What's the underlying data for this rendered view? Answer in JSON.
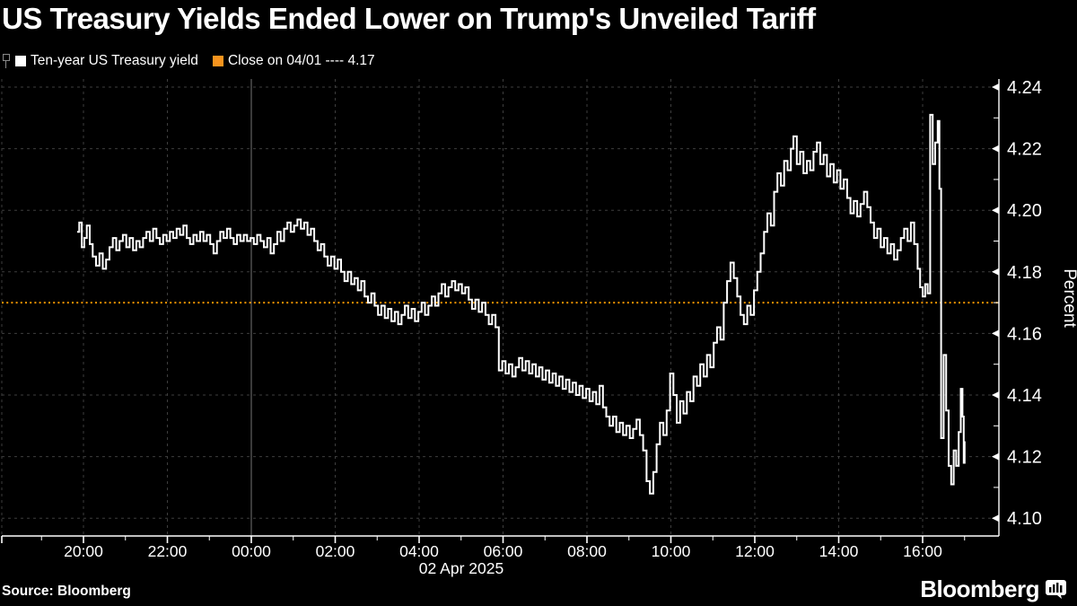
{
  "title": {
    "text": "US Treasury Yields Ended Lower on Trump's Unveiled Tariff"
  },
  "legend": {
    "series1": {
      "label": "Ten-year US Treasury yield",
      "swatch_color": "#ffffff"
    },
    "series2": {
      "label": "Close on 04/01 ---- 4.17",
      "swatch_color": "#f7941e"
    }
  },
  "footer": {
    "source": "Source: Bloomberg",
    "brand": "Bloomberg"
  },
  "colors": {
    "background": "#000000",
    "line": "#ffffff",
    "close_line": "#f79500",
    "grid": "#3e3e3e",
    "day_separator": "#757575",
    "axis": "#ffffff",
    "pin_icon": "#8a8a8a"
  },
  "chart_data": {
    "type": "line",
    "title": "US Treasury Yields Ended Lower on Trump's Unveiled Tariff",
    "ylabel": "Percent",
    "date_label": "02 Apr 2025",
    "y_axis": {
      "min": 4.1,
      "max": 4.24,
      "tick_step": 0.02,
      "tick_labels": [
        "4.10",
        "4.12",
        "4.14",
        "4.16",
        "4.18",
        "4.20",
        "4.22",
        "4.24"
      ]
    },
    "x_axis": {
      "tick_labels": [
        "20:00",
        "22:00",
        "00:00",
        "02:00",
        "04:00",
        "06:00",
        "08:00",
        "10:00",
        "12:00",
        "14:00",
        "16:00"
      ],
      "tick_hours": [
        1,
        3,
        5,
        7,
        9,
        11,
        13,
        15,
        17,
        19,
        21
      ],
      "day_separator_hour": 5,
      "grid": true
    },
    "close_line": {
      "label": "Close on 04/01",
      "value": 4.17,
      "style": "dashed",
      "color": "#f79500"
    },
    "series": [
      {
        "name": "Ten-year US Treasury yield",
        "color": "#ffffff",
        "interpolation": "step-after",
        "points": [
          [
            0.85,
            4.193
          ],
          [
            0.9,
            4.196
          ],
          [
            0.96,
            4.188
          ],
          [
            1.02,
            4.191
          ],
          [
            1.08,
            4.195
          ],
          [
            1.15,
            4.189
          ],
          [
            1.22,
            4.185
          ],
          [
            1.3,
            4.182
          ],
          [
            1.38,
            4.186
          ],
          [
            1.46,
            4.181
          ],
          [
            1.54,
            4.184
          ],
          [
            1.62,
            4.188
          ],
          [
            1.7,
            4.191
          ],
          [
            1.78,
            4.187
          ],
          [
            1.86,
            4.19
          ],
          [
            1.94,
            4.192
          ],
          [
            2.02,
            4.188
          ],
          [
            2.1,
            4.191
          ],
          [
            2.18,
            4.187
          ],
          [
            2.26,
            4.19
          ],
          [
            2.34,
            4.188
          ],
          [
            2.42,
            4.191
          ],
          [
            2.5,
            4.193
          ],
          [
            2.58,
            4.19
          ],
          [
            2.66,
            4.194
          ],
          [
            2.74,
            4.191
          ],
          [
            2.82,
            4.189
          ],
          [
            2.9,
            4.192
          ],
          [
            2.98,
            4.19
          ],
          [
            3.06,
            4.193
          ],
          [
            3.14,
            4.191
          ],
          [
            3.22,
            4.194
          ],
          [
            3.3,
            4.192
          ],
          [
            3.38,
            4.195
          ],
          [
            3.46,
            4.191
          ],
          [
            3.54,
            4.189
          ],
          [
            3.62,
            4.192
          ],
          [
            3.7,
            4.19
          ],
          [
            3.78,
            4.193
          ],
          [
            3.86,
            4.19
          ],
          [
            3.94,
            4.192
          ],
          [
            4.02,
            4.189
          ],
          [
            4.1,
            4.186
          ],
          [
            4.18,
            4.19
          ],
          [
            4.26,
            4.193
          ],
          [
            4.34,
            4.191
          ],
          [
            4.42,
            4.194
          ],
          [
            4.5,
            4.191
          ],
          [
            4.58,
            4.189
          ],
          [
            4.66,
            4.192
          ],
          [
            4.74,
            4.19
          ],
          [
            4.82,
            4.192
          ],
          [
            4.9,
            4.19
          ],
          [
            4.98,
            4.191
          ],
          [
            5.06,
            4.189
          ],
          [
            5.14,
            4.192
          ],
          [
            5.22,
            4.19
          ],
          [
            5.3,
            4.188
          ],
          [
            5.38,
            4.191
          ],
          [
            5.46,
            4.186
          ],
          [
            5.54,
            4.189
          ],
          [
            5.62,
            4.193
          ],
          [
            5.7,
            4.19
          ],
          [
            5.78,
            4.194
          ],
          [
            5.86,
            4.196
          ],
          [
            5.94,
            4.193
          ],
          [
            6.02,
            4.195
          ],
          [
            6.1,
            4.197
          ],
          [
            6.18,
            4.194
          ],
          [
            6.26,
            4.196
          ],
          [
            6.34,
            4.192
          ],
          [
            6.42,
            4.194
          ],
          [
            6.5,
            4.19
          ],
          [
            6.58,
            4.187
          ],
          [
            6.66,
            4.189
          ],
          [
            6.74,
            4.185
          ],
          [
            6.82,
            4.182
          ],
          [
            6.9,
            4.185
          ],
          [
            6.98,
            4.181
          ],
          [
            7.06,
            4.184
          ],
          [
            7.14,
            4.18
          ],
          [
            7.22,
            4.177
          ],
          [
            7.3,
            4.18
          ],
          [
            7.38,
            4.176
          ],
          [
            7.46,
            4.178
          ],
          [
            7.54,
            4.174
          ],
          [
            7.62,
            4.177
          ],
          [
            7.7,
            4.172
          ],
          [
            7.78,
            4.17
          ],
          [
            7.86,
            4.173
          ],
          [
            7.94,
            4.169
          ],
          [
            8.02,
            4.166
          ],
          [
            8.1,
            4.169
          ],
          [
            8.18,
            4.165
          ],
          [
            8.26,
            4.168
          ],
          [
            8.34,
            4.164
          ],
          [
            8.42,
            4.167
          ],
          [
            8.5,
            4.163
          ],
          [
            8.58,
            4.166
          ],
          [
            8.66,
            4.169
          ],
          [
            8.74,
            4.165
          ],
          [
            8.82,
            4.168
          ],
          [
            8.9,
            4.164
          ],
          [
            8.98,
            4.167
          ],
          [
            9.06,
            4.17
          ],
          [
            9.14,
            4.166
          ],
          [
            9.22,
            4.169
          ],
          [
            9.3,
            4.172
          ],
          [
            9.38,
            4.169
          ],
          [
            9.46,
            4.173
          ],
          [
            9.54,
            4.176
          ],
          [
            9.62,
            4.172
          ],
          [
            9.7,
            4.175
          ],
          [
            9.78,
            4.177
          ],
          [
            9.86,
            4.174
          ],
          [
            9.94,
            4.176
          ],
          [
            10.02,
            4.173
          ],
          [
            10.1,
            4.175
          ],
          [
            10.18,
            4.171
          ],
          [
            10.26,
            4.168
          ],
          [
            10.34,
            4.171
          ],
          [
            10.42,
            4.167
          ],
          [
            10.5,
            4.17
          ],
          [
            10.58,
            4.166
          ],
          [
            10.66,
            4.163
          ],
          [
            10.74,
            4.166
          ],
          [
            10.82,
            4.162
          ],
          [
            10.9,
            4.148
          ],
          [
            10.98,
            4.151
          ],
          [
            11.06,
            4.147
          ],
          [
            11.14,
            4.15
          ],
          [
            11.22,
            4.146
          ],
          [
            11.3,
            4.149
          ],
          [
            11.38,
            4.152
          ],
          [
            11.46,
            4.148
          ],
          [
            11.54,
            4.151
          ],
          [
            11.62,
            4.147
          ],
          [
            11.7,
            4.15
          ],
          [
            11.78,
            4.146
          ],
          [
            11.86,
            4.149
          ],
          [
            11.94,
            4.145
          ],
          [
            12.02,
            4.148
          ],
          [
            12.1,
            4.144
          ],
          [
            12.18,
            4.147
          ],
          [
            12.26,
            4.143
          ],
          [
            12.34,
            4.146
          ],
          [
            12.42,
            4.142
          ],
          [
            12.5,
            4.145
          ],
          [
            12.58,
            4.141
          ],
          [
            12.66,
            4.144
          ],
          [
            12.74,
            4.14
          ],
          [
            12.82,
            4.143
          ],
          [
            12.9,
            4.139
          ],
          [
            12.98,
            4.142
          ],
          [
            13.06,
            4.138
          ],
          [
            13.14,
            4.141
          ],
          [
            13.22,
            4.137
          ],
          [
            13.3,
            4.143
          ],
          [
            13.38,
            4.136
          ],
          [
            13.46,
            4.133
          ],
          [
            13.54,
            4.13
          ],
          [
            13.62,
            4.133
          ],
          [
            13.7,
            4.128
          ],
          [
            13.78,
            4.131
          ],
          [
            13.86,
            4.127
          ],
          [
            13.94,
            4.13
          ],
          [
            14.02,
            4.126
          ],
          [
            14.1,
            4.129
          ],
          [
            14.18,
            4.132
          ],
          [
            14.26,
            4.127
          ],
          [
            14.34,
            4.122
          ],
          [
            14.42,
            4.112
          ],
          [
            14.5,
            4.108
          ],
          [
            14.58,
            4.115
          ],
          [
            14.66,
            4.124
          ],
          [
            14.74,
            4.131
          ],
          [
            14.82,
            4.127
          ],
          [
            14.9,
            4.135
          ],
          [
            14.98,
            4.147
          ],
          [
            15.06,
            4.14
          ],
          [
            15.14,
            4.131
          ],
          [
            15.22,
            4.138
          ],
          [
            15.3,
            4.134
          ],
          [
            15.38,
            4.141
          ],
          [
            15.46,
            4.138
          ],
          [
            15.54,
            4.146
          ],
          [
            15.62,
            4.143
          ],
          [
            15.7,
            4.15
          ],
          [
            15.78,
            4.146
          ],
          [
            15.86,
            4.153
          ],
          [
            15.94,
            4.149
          ],
          [
            16.02,
            4.157
          ],
          [
            16.1,
            4.162
          ],
          [
            16.18,
            4.158
          ],
          [
            16.26,
            4.17
          ],
          [
            16.34,
            4.177
          ],
          [
            16.42,
            4.183
          ],
          [
            16.5,
            4.178
          ],
          [
            16.58,
            4.172
          ],
          [
            16.66,
            4.166
          ],
          [
            16.74,
            4.163
          ],
          [
            16.82,
            4.169
          ],
          [
            16.9,
            4.166
          ],
          [
            16.98,
            4.174
          ],
          [
            17.06,
            4.18
          ],
          [
            17.14,
            4.186
          ],
          [
            17.22,
            4.193
          ],
          [
            17.3,
            4.199
          ],
          [
            17.38,
            4.195
          ],
          [
            17.46,
            4.206
          ],
          [
            17.54,
            4.212
          ],
          [
            17.62,
            4.208
          ],
          [
            17.7,
            4.216
          ],
          [
            17.78,
            4.213
          ],
          [
            17.86,
            4.22
          ],
          [
            17.92,
            4.224
          ],
          [
            18.0,
            4.215
          ],
          [
            18.08,
            4.219
          ],
          [
            18.16,
            4.212
          ],
          [
            18.24,
            4.216
          ],
          [
            18.32,
            4.213
          ],
          [
            18.4,
            4.219
          ],
          [
            18.48,
            4.222
          ],
          [
            18.56,
            4.215
          ],
          [
            18.64,
            4.218
          ],
          [
            18.72,
            4.211
          ],
          [
            18.8,
            4.215
          ],
          [
            18.88,
            4.209
          ],
          [
            18.96,
            4.213
          ],
          [
            19.04,
            4.207
          ],
          [
            19.12,
            4.21
          ],
          [
            19.2,
            4.204
          ],
          [
            19.28,
            4.199
          ],
          [
            19.36,
            4.203
          ],
          [
            19.44,
            4.198
          ],
          [
            19.52,
            4.202
          ],
          [
            19.6,
            4.206
          ],
          [
            19.68,
            4.201
          ],
          [
            19.76,
            4.196
          ],
          [
            19.84,
            4.191
          ],
          [
            19.92,
            4.194
          ],
          [
            20.0,
            4.188
          ],
          [
            20.08,
            4.191
          ],
          [
            20.16,
            4.186
          ],
          [
            20.24,
            4.189
          ],
          [
            20.32,
            4.184
          ],
          [
            20.4,
            4.187
          ],
          [
            20.48,
            4.191
          ],
          [
            20.56,
            4.194
          ],
          [
            20.64,
            4.19
          ],
          [
            20.72,
            4.196
          ],
          [
            20.8,
            4.189
          ],
          [
            20.88,
            4.181
          ],
          [
            20.94,
            4.175
          ],
          [
            21.0,
            4.172
          ],
          [
            21.06,
            4.176
          ],
          [
            21.12,
            4.173
          ],
          [
            21.18,
            4.231
          ],
          [
            21.24,
            4.215
          ],
          [
            21.3,
            4.222
          ],
          [
            21.36,
            4.229
          ],
          [
            21.4,
            4.207
          ],
          [
            21.44,
            4.126
          ],
          [
            21.5,
            4.153
          ],
          [
            21.56,
            4.135
          ],
          [
            21.62,
            4.117
          ],
          [
            21.68,
            4.111
          ],
          [
            21.74,
            4.122
          ],
          [
            21.8,
            4.117
          ],
          [
            21.86,
            4.128
          ],
          [
            21.91,
            4.142
          ],
          [
            21.95,
            4.133
          ],
          [
            21.98,
            4.118
          ],
          [
            22.0,
            4.125
          ]
        ]
      }
    ]
  }
}
